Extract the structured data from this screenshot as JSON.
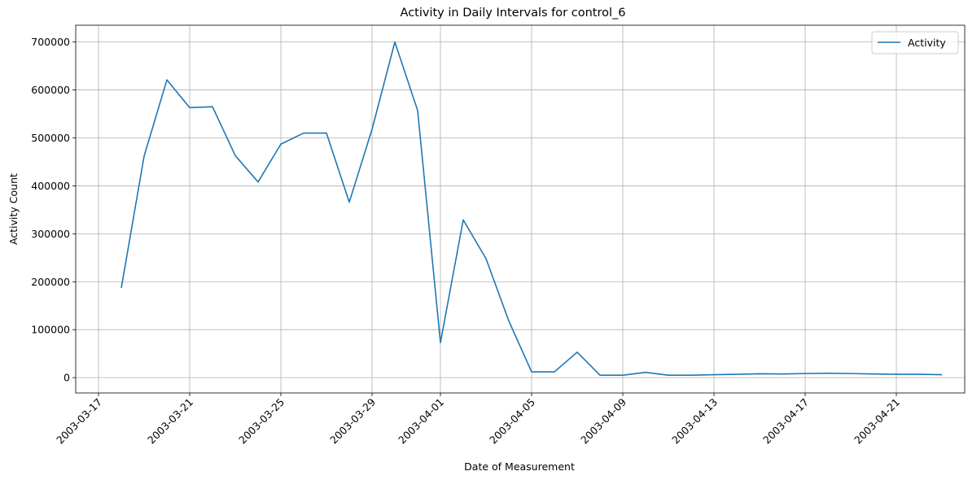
{
  "chart_data": {
    "type": "line",
    "title": "Activity in Daily Intervals for control_6",
    "xlabel": "Date of Measurement",
    "ylabel": "Activity Count",
    "x_range": [
      "2003-03-16",
      "2003-04-24"
    ],
    "ylim": [
      -32000,
      735000
    ],
    "x_ticks": [
      "2003-03-17",
      "2003-03-21",
      "2003-03-25",
      "2003-03-29",
      "2003-04-01",
      "2003-04-05",
      "2003-04-09",
      "2003-04-13",
      "2003-04-17",
      "2003-04-21"
    ],
    "y_ticks": [
      0,
      100000,
      200000,
      300000,
      400000,
      500000,
      600000,
      700000
    ],
    "grid": true,
    "legend_position": "top-right",
    "series": [
      {
        "name": "Activity",
        "color": "#1f77b4",
        "points": [
          {
            "x": "2003-03-18",
            "y": 187000
          },
          {
            "x": "2003-03-19",
            "y": 462000
          },
          {
            "x": "2003-03-20",
            "y": 621000
          },
          {
            "x": "2003-03-21",
            "y": 563000
          },
          {
            "x": "2003-03-22",
            "y": 565000
          },
          {
            "x": "2003-03-23",
            "y": 463000
          },
          {
            "x": "2003-03-24",
            "y": 408000
          },
          {
            "x": "2003-03-25",
            "y": 487000
          },
          {
            "x": "2003-03-26",
            "y": 510000
          },
          {
            "x": "2003-03-27",
            "y": 510000
          },
          {
            "x": "2003-03-28",
            "y": 366000
          },
          {
            "x": "2003-03-29",
            "y": 518000
          },
          {
            "x": "2003-03-30",
            "y": 700000
          },
          {
            "x": "2003-03-31",
            "y": 557000
          },
          {
            "x": "2003-04-01",
            "y": 73000
          },
          {
            "x": "2003-04-02",
            "y": 329000
          },
          {
            "x": "2003-04-03",
            "y": 248000
          },
          {
            "x": "2003-04-04",
            "y": 118000
          },
          {
            "x": "2003-04-05",
            "y": 12000
          },
          {
            "x": "2003-04-06",
            "y": 12000
          },
          {
            "x": "2003-04-07",
            "y": 53000
          },
          {
            "x": "2003-04-08",
            "y": 5000
          },
          {
            "x": "2003-04-09",
            "y": 5000
          },
          {
            "x": "2003-04-10",
            "y": 11000
          },
          {
            "x": "2003-04-11",
            "y": 5000
          },
          {
            "x": "2003-04-12",
            "y": 5000
          },
          {
            "x": "2003-04-13",
            "y": 6000
          },
          {
            "x": "2003-04-14",
            "y": 7000
          },
          {
            "x": "2003-04-15",
            "y": 8000
          },
          {
            "x": "2003-04-16",
            "y": 7500
          },
          {
            "x": "2003-04-17",
            "y": 8500
          },
          {
            "x": "2003-04-18",
            "y": 9000
          },
          {
            "x": "2003-04-19",
            "y": 8500
          },
          {
            "x": "2003-04-20",
            "y": 7500
          },
          {
            "x": "2003-04-21",
            "y": 7000
          },
          {
            "x": "2003-04-22",
            "y": 7000
          },
          {
            "x": "2003-04-23",
            "y": 6000
          }
        ]
      }
    ]
  }
}
